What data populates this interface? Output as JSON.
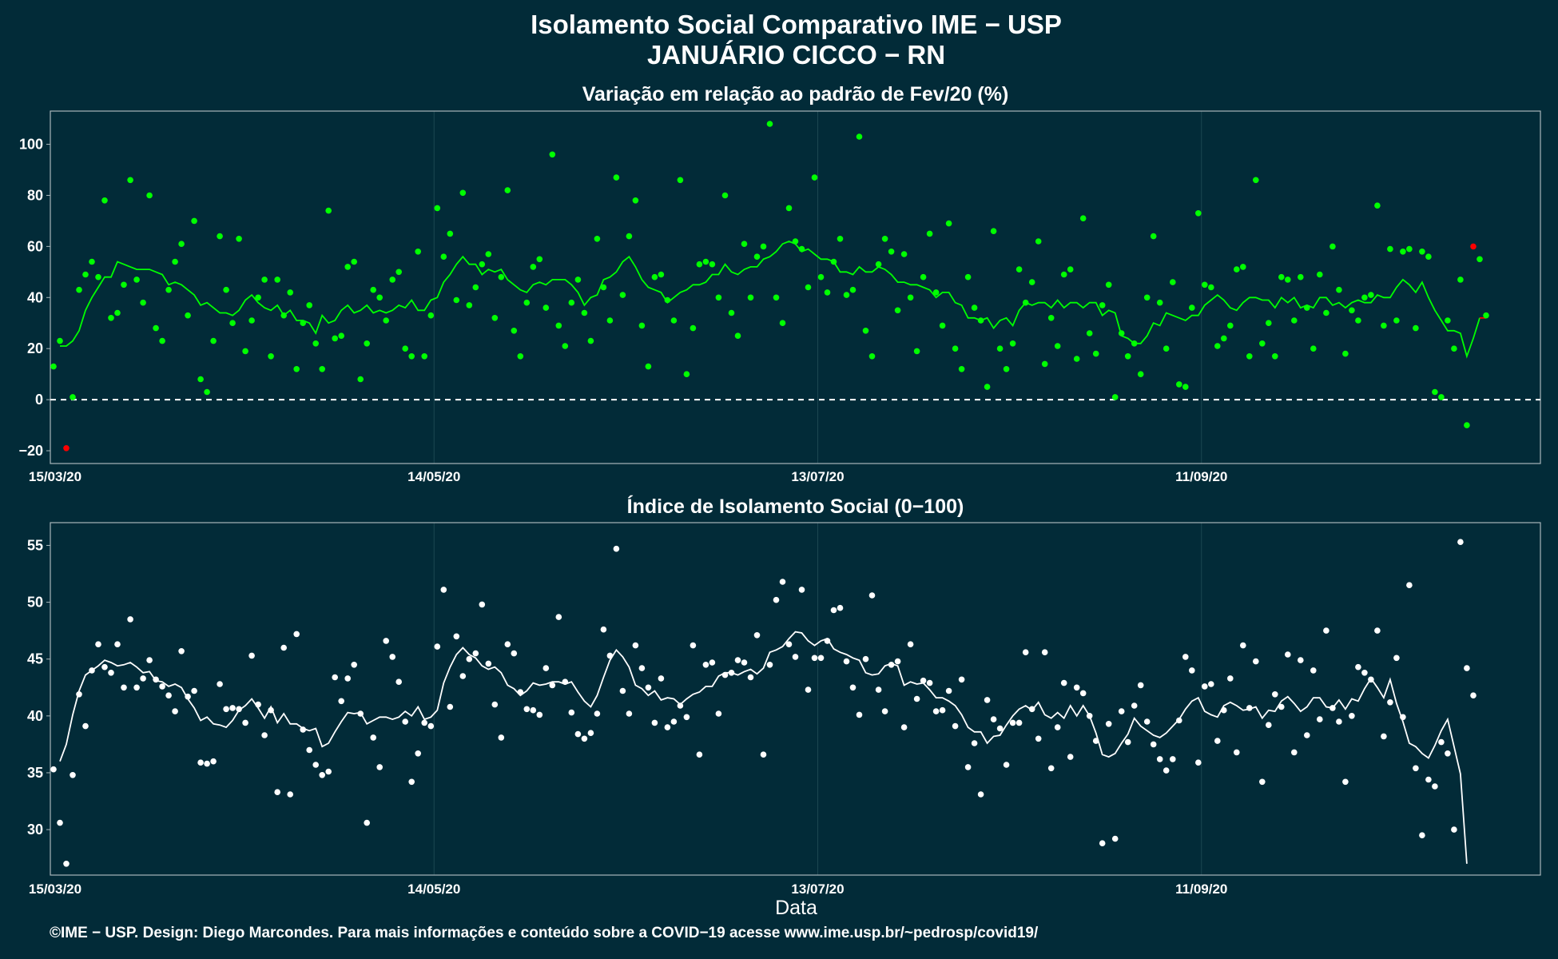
{
  "title_line1": "Isolamento Social Comparativo IME − USP",
  "title_line2": "JANUÁRIO CICCO − RN",
  "footer": "©IME − USP. Design: Diego Marcondes. Para mais informações e conteúdo sobre a COVID−19 acesse www.ime.usp.br/~pedrosp/covid19/",
  "colors": {
    "background": "#022b38",
    "variation_points": "#00ff00",
    "negative_points": "#ff0000",
    "index_points": "#ffffff"
  },
  "chart_data": [
    {
      "type": "scatter",
      "title": "Variação em relação ao padrão de Fev/20 (%)",
      "xlabel": "",
      "ylabel": "",
      "x_start": "15/03/20",
      "x_ticks": [
        "15/03/20",
        "14/05/20",
        "13/07/20",
        "11/09/20"
      ],
      "ylim": [
        -25,
        113
      ],
      "y_ticks": [
        -20,
        0,
        20,
        40,
        60,
        80,
        100
      ],
      "reference_line": 0,
      "grid": true,
      "values": [
        13,
        23,
        -19,
        1,
        43,
        49,
        54,
        48,
        78,
        32,
        34,
        45,
        86,
        47,
        38,
        80,
        28,
        23,
        43,
        54,
        61,
        33,
        70,
        8,
        3,
        23,
        64,
        43,
        30,
        63,
        19,
        31,
        40,
        47,
        17,
        47,
        33,
        42,
        12,
        30,
        37,
        22,
        12,
        74,
        24,
        25,
        52,
        54,
        8,
        22,
        43,
        40,
        31,
        47,
        50,
        20,
        17,
        58,
        17,
        33,
        75,
        56,
        65,
        39,
        81,
        37,
        44,
        53,
        57,
        32,
        48,
        82,
        27,
        17,
        38,
        52,
        55,
        36,
        96,
        29,
        21,
        38,
        47,
        34,
        23,
        63,
        44,
        31,
        87,
        41,
        64,
        78,
        29,
        13,
        48,
        49,
        39,
        31,
        86,
        10,
        28,
        53,
        54,
        53,
        40,
        80,
        34,
        25,
        61,
        40,
        56,
        60,
        108,
        40,
        30,
        75,
        62,
        59,
        44,
        87,
        48,
        42,
        54,
        63,
        41,
        43,
        103,
        27,
        17,
        53,
        63,
        58,
        35,
        57,
        40,
        19,
        48,
        65,
        42,
        29,
        69,
        20,
        12,
        48,
        36,
        31,
        5,
        66,
        20,
        12,
        22,
        51,
        38,
        46,
        62,
        14,
        32,
        21,
        49,
        51,
        16,
        71,
        26,
        18,
        37,
        45,
        1,
        26,
        17,
        22,
        10,
        40,
        64,
        38,
        20,
        46,
        6,
        5,
        36,
        73,
        45,
        44,
        21,
        24,
        29,
        51,
        52,
        17,
        86,
        22,
        30,
        17,
        48,
        47,
        31,
        48,
        36,
        20,
        49,
        34,
        60,
        43,
        18,
        35,
        31,
        40,
        41,
        76,
        29,
        59,
        31,
        58,
        59,
        28,
        58,
        56,
        3,
        1,
        31,
        20,
        47,
        -10,
        60,
        55,
        33
      ],
      "moving_average": [
        21,
        21,
        23,
        27,
        35,
        40,
        44,
        48,
        48,
        54,
        53,
        52,
        51,
        51,
        51,
        50,
        49,
        45,
        46,
        45,
        43,
        41,
        37,
        38,
        36,
        34,
        34,
        33,
        35,
        39,
        41,
        38,
        36,
        35,
        37,
        33,
        35,
        31,
        31,
        30,
        26,
        33,
        30,
        31,
        35,
        37,
        34,
        35,
        37,
        34,
        35,
        34,
        35,
        37,
        36,
        39,
        35,
        35,
        39,
        40,
        46,
        49,
        53,
        56,
        53,
        53,
        49,
        51,
        50,
        51,
        47,
        45,
        43,
        42,
        45,
        46,
        45,
        47,
        47,
        47,
        45,
        42,
        37,
        40,
        41,
        47,
        48,
        50,
        54,
        56,
        52,
        47,
        44,
        43,
        42,
        38,
        40,
        42,
        43,
        45,
        45,
        46,
        49,
        49,
        53,
        50,
        49,
        51,
        52,
        52,
        55,
        56,
        58,
        61,
        62,
        61,
        58,
        59,
        57,
        55,
        55,
        54,
        50,
        50,
        49,
        52,
        50,
        50,
        52,
        51,
        49,
        46,
        46,
        45,
        45,
        44,
        43,
        40,
        42,
        42,
        38,
        37,
        32,
        32,
        31,
        32,
        28,
        31,
        32,
        29,
        35,
        38,
        37,
        38,
        38,
        36,
        39,
        36,
        38,
        38,
        36,
        38,
        38,
        33,
        35,
        34,
        25,
        24,
        22,
        22,
        25,
        30,
        29,
        34,
        33,
        32,
        31,
        33,
        33,
        37,
        39,
        41,
        39,
        36,
        35,
        38,
        40,
        40,
        39,
        39,
        36,
        40,
        38,
        40,
        36,
        37,
        36,
        40,
        40,
        37,
        38,
        36,
        38,
        39,
        38,
        38,
        41,
        40,
        40,
        44,
        47,
        45,
        42,
        46,
        40,
        35,
        31,
        27,
        27,
        26,
        17,
        24,
        32,
        32
      ],
      "moving_average_tail_negative": true,
      "negative_point_indices": [
        2,
        222
      ]
    },
    {
      "type": "scatter",
      "title": "Índice de Isolamento Social (0−100)",
      "xlabel": "Data",
      "ylabel": "",
      "x_start": "15/03/20",
      "x_ticks": [
        "15/03/20",
        "14/05/20",
        "13/07/20",
        "11/09/20"
      ],
      "ylim": [
        26,
        57
      ],
      "y_ticks": [
        30,
        35,
        40,
        45,
        50,
        55
      ],
      "grid": true,
      "values": [
        35.3,
        30.6,
        27,
        34.8,
        41.9,
        39.1,
        44,
        46.3,
        44.3,
        43.8,
        46.3,
        42.5,
        48.5,
        42.5,
        43.3,
        44.9,
        43.2,
        42.6,
        41.8,
        40.4,
        45.7,
        41.7,
        42.2,
        35.9,
        35.8,
        36,
        42.8,
        40.6,
        40.7,
        40.6,
        39.4,
        45.3,
        41,
        38.3,
        40.5,
        33.3,
        46,
        33.1,
        47.2,
        38.8,
        37,
        35.7,
        34.8,
        35.1,
        43.4,
        41.3,
        43.3,
        44.5,
        40.2,
        30.6,
        38.1,
        35.5,
        46.6,
        45.2,
        43,
        39.5,
        34.2,
        36.7,
        39.4,
        39.1,
        46.1,
        51.1,
        40.8,
        47,
        43.5,
        45,
        45.5,
        49.8,
        44.6,
        41,
        38.1,
        46.3,
        45.5,
        42.1,
        40.6,
        40.5,
        40.1,
        44.2,
        42.7,
        48.7,
        43,
        40.3,
        38.4,
        38,
        38.5,
        40.2,
        47.6,
        45.3,
        54.7,
        42.2,
        40.2,
        46.2,
        44.2,
        42.5,
        39.4,
        43.3,
        39,
        39.5,
        40.9,
        39.9,
        46.2,
        36.6,
        44.5,
        44.7,
        40.2,
        43.6,
        43.8,
        44.9,
        44.7,
        43.4,
        47.1,
        36.6,
        44.5,
        50.2,
        51.8,
        46.3,
        45.2,
        51.1,
        42.3,
        45.1,
        45.1,
        46.6,
        49.3,
        49.5,
        44.8,
        42.5,
        40.1,
        45,
        50.6,
        42.3,
        40.4,
        44.5,
        44.8,
        39,
        46.3,
        41.5,
        43.1,
        42.9,
        40.4,
        40.5,
        42.2,
        39.1,
        43.2,
        35.5,
        37.6,
        33.1,
        41.4,
        39.7,
        38.9,
        35.7,
        39.4,
        39.4,
        45.6,
        40.6,
        38,
        45.6,
        35.4,
        39,
        42.9,
        36.4,
        42.5,
        42,
        40,
        37.8,
        28.8,
        39.3,
        29.2,
        40.4,
        37.7,
        40.9,
        42.7,
        39.5,
        37.5,
        36.2,
        35.2,
        36.2,
        39.6,
        45.2,
        44,
        35.9,
        42.6,
        42.8,
        37.8,
        40.5,
        43.3,
        36.8,
        46.2,
        40.7,
        44.8,
        34.2,
        39.2,
        41.9,
        40.8,
        45.4,
        36.8,
        44.9,
        38.3,
        44,
        39.7,
        47.5,
        40.7,
        39.5,
        34.2,
        40,
        44.3,
        43.8,
        43.2,
        47.5,
        38.2,
        41.2,
        45.1,
        39.9,
        51.5,
        35.4,
        29.5,
        34.4,
        33.8,
        37.7,
        36.7,
        30,
        55.3,
        44.2,
        41.8
      ],
      "moving_average": [
        36,
        37.5,
        40.1,
        42.2,
        43.6,
        44,
        44.4,
        44.9,
        44.7,
        44.4,
        44.5,
        44.7,
        44.3,
        43.8,
        43.9,
        43.1,
        43,
        42.6,
        42.8,
        42.5,
        41.5,
        40.7,
        39.6,
        39.9,
        39.3,
        39.2,
        39,
        39.6,
        40.5,
        40.9,
        41.5,
        40.7,
        39.8,
        40.8,
        39.4,
        40.2,
        39.3,
        39.3,
        38.9,
        38.7,
        38.9,
        37.3,
        37.6,
        38.6,
        39.5,
        40.3,
        40.2,
        40.3,
        39.3,
        39.6,
        39.9,
        39.9,
        39.7,
        39.9,
        40.4,
        40,
        40.8,
        39.7,
        39.9,
        40.5,
        42.9,
        44.3,
        45.4,
        46,
        45.4,
        45.1,
        44.4,
        44.1,
        44.3,
        43.8,
        42.7,
        42.4,
        41.8,
        42.2,
        42.9,
        42.7,
        42.8,
        43,
        43,
        42.8,
        43,
        42.1,
        41.3,
        40.8,
        41.8,
        43.4,
        44.9,
        45.8,
        45.2,
        44.3,
        42.7,
        42.4,
        41.8,
        42.2,
        41.4,
        41.6,
        41.5,
        41,
        41.5,
        41.9,
        42.1,
        42.6,
        42.6,
        43.5,
        43.8,
        43.8,
        43.6,
        43.9,
        44.1,
        43.7,
        44.2,
        45.6,
        45.8,
        46.1,
        46.8,
        47.4,
        47.3,
        46.6,
        46.2,
        46.6,
        46.8,
        45.9,
        45.6,
        45.4,
        45.1,
        44.9,
        43.8,
        43.6,
        43.7,
        44.4,
        44.6,
        44.4,
        42.7,
        43,
        42.8,
        42.9,
        42.3,
        41.6,
        41.6,
        41.3,
        40.9,
        40.1,
        39,
        38.6,
        38.6,
        37.6,
        38.2,
        38.3,
        39.2,
        40,
        40.6,
        40.9,
        40.5,
        41.2,
        40.1,
        39.8,
        40.3,
        39.8,
        40.9,
        40,
        40.9,
        40,
        38.5,
        36.6,
        36.4,
        36.7,
        37.6,
        38.4,
        39.8,
        39.1,
        38.7,
        38.3,
        38.1,
        38.5,
        39.1,
        39.7,
        40.6,
        41.3,
        41.6,
        40.4,
        40.1,
        39.9,
        40.9,
        41.2,
        40.9,
        40.5,
        40.6,
        40.8,
        39.8,
        40.5,
        40.4,
        41.3,
        41.7,
        41.1,
        40.4,
        40.8,
        41.6,
        41.6,
        40.8,
        40.7,
        41.4,
        40.6,
        41.5,
        41.3,
        42.4,
        43.3,
        42.5,
        41.6,
        43.2,
        41.1,
        39.5,
        37.6,
        37.3,
        36.7,
        36.3,
        37.4,
        38.7,
        39.7,
        37.3,
        34.9,
        27
      ]
    }
  ]
}
